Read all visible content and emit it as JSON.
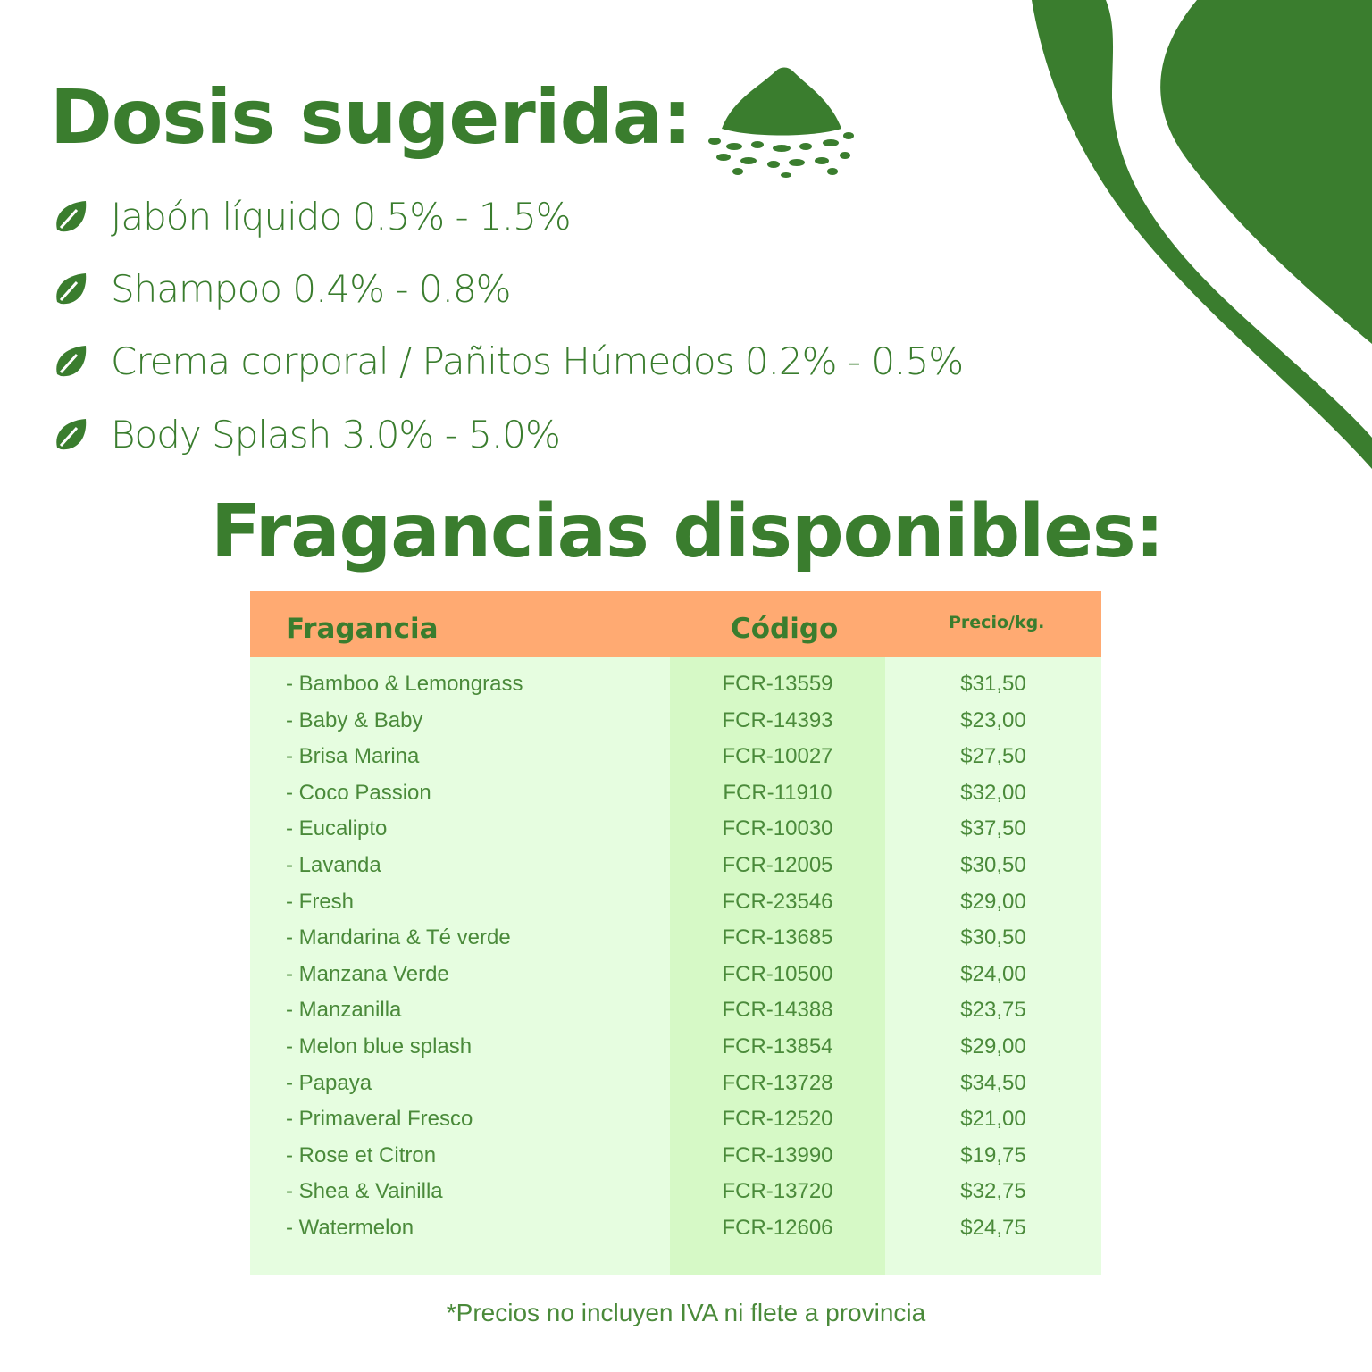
{
  "colors": {
    "brand_green": "#3a7d2e",
    "header_orange": "#ffaa72",
    "table_bg": "#e6fde0",
    "column_highlight": "#d6f9c6"
  },
  "dosage": {
    "title": "Dosis sugerida:",
    "icon": "powder-pile-icon",
    "bullet_icon": "leaf-icon",
    "items": [
      "Jabón líquido 0.5% - 1.5%",
      "Shampoo 0.4% - 0.8%",
      "Crema corporal / Pañitos Húmedos 0.2% - 0.5%",
      "Body Splash 3.0% - 5.0%"
    ]
  },
  "fragrances": {
    "title": "Fragancias disponibles:",
    "headers": [
      "Fragancia",
      "Código",
      "Precio/kg."
    ],
    "rows": [
      [
        "- Bamboo & Lemongrass",
        "FCR-13559",
        "$31,50"
      ],
      [
        "- Baby & Baby",
        "FCR-14393",
        "$23,00"
      ],
      [
        "- Brisa Marina",
        "FCR-10027",
        "$27,50"
      ],
      [
        "- Coco Passion",
        "FCR-11910",
        "$32,00"
      ],
      [
        "- Eucalipto",
        "FCR-10030",
        "$37,50"
      ],
      [
        "- Lavanda",
        "FCR-12005",
        "$30,50"
      ],
      [
        "- Fresh",
        "FCR-23546",
        "$29,00"
      ],
      [
        "- Mandarina & Té verde",
        "FCR-13685",
        "$30,50"
      ],
      [
        "- Manzana Verde",
        "FCR-10500",
        "$24,00"
      ],
      [
        "- Manzanilla",
        "FCR-14388",
        "$23,75"
      ],
      [
        "- Melon blue splash",
        "FCR-13854",
        "$29,00"
      ],
      [
        "- Papaya",
        "FCR-13728",
        "$34,50"
      ],
      [
        "- Primaveral Fresco",
        "FCR-12520",
        "$21,00"
      ],
      [
        "- Rose et Citron",
        "FCR-13990",
        "$19,75"
      ],
      [
        "- Shea & Vainilla",
        "FCR-13720",
        "$32,75"
      ],
      [
        "- Watermelon",
        "FCR-12606",
        "$24,75"
      ]
    ],
    "note": "*Precios no incluyen IVA ni flete a provincia"
  }
}
